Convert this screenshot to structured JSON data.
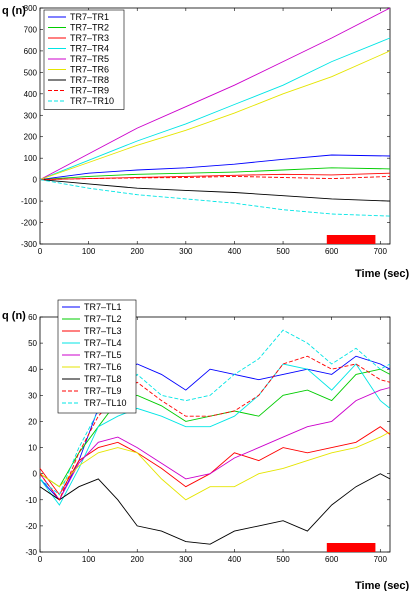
{
  "chart_data": [
    {
      "type": "line",
      "ylabel": "q (n)",
      "xlabel": "Time (sec)",
      "xlim": [
        0,
        720
      ],
      "ylim": [
        -300,
        800
      ],
      "xticks": [
        0,
        100,
        200,
        300,
        400,
        500,
        600,
        700
      ],
      "yticks": [
        -300,
        -200,
        -100,
        0,
        100,
        200,
        300,
        400,
        500,
        600,
        700,
        800
      ],
      "legend_position": "top-left",
      "highlight_band": {
        "x": [
          590,
          690
        ],
        "color": "#ff0000"
      },
      "series": [
        {
          "name": "TR7–TR1",
          "color": "#0000ff",
          "dash": false,
          "points": [
            [
              0,
              0
            ],
            [
              100,
              30
            ],
            [
              200,
              45
            ],
            [
              300,
              55
            ],
            [
              400,
              72
            ],
            [
              500,
              95
            ],
            [
              600,
              115
            ],
            [
              720,
              110
            ]
          ]
        },
        {
          "name": "TR7–TR2",
          "color": "#00cc00",
          "dash": false,
          "points": [
            [
              0,
              0
            ],
            [
              100,
              15
            ],
            [
              200,
              25
            ],
            [
              300,
              30
            ],
            [
              400,
              35
            ],
            [
              500,
              45
            ],
            [
              600,
              55
            ],
            [
              720,
              50
            ]
          ]
        },
        {
          "name": "TR7–TR3",
          "color": "#ff0000",
          "dash": false,
          "points": [
            [
              0,
              0
            ],
            [
              100,
              5
            ],
            [
              200,
              10
            ],
            [
              300,
              15
            ],
            [
              400,
              20
            ],
            [
              500,
              25
            ],
            [
              600,
              22
            ],
            [
              720,
              30
            ]
          ]
        },
        {
          "name": "TR7–TR4",
          "color": "#00e5e5",
          "dash": false,
          "points": [
            [
              0,
              0
            ],
            [
              100,
              90
            ],
            [
              200,
              180
            ],
            [
              300,
              260
            ],
            [
              400,
              350
            ],
            [
              500,
              440
            ],
            [
              600,
              550
            ],
            [
              720,
              660
            ]
          ]
        },
        {
          "name": "TR7–TR5",
          "color": "#cc00cc",
          "dash": false,
          "points": [
            [
              0,
              0
            ],
            [
              100,
              120
            ],
            [
              200,
              240
            ],
            [
              300,
              340
            ],
            [
              400,
              440
            ],
            [
              500,
              550
            ],
            [
              600,
              660
            ],
            [
              720,
              800
            ]
          ]
        },
        {
          "name": "TR7–TR6",
          "color": "#e5e500",
          "dash": false,
          "points": [
            [
              0,
              0
            ],
            [
              100,
              80
            ],
            [
              200,
              160
            ],
            [
              300,
              230
            ],
            [
              400,
              310
            ],
            [
              500,
              400
            ],
            [
              600,
              480
            ],
            [
              720,
              600
            ]
          ]
        },
        {
          "name": "TR7–TR8",
          "color": "#000000",
          "dash": false,
          "points": [
            [
              0,
              0
            ],
            [
              100,
              -20
            ],
            [
              200,
              -40
            ],
            [
              300,
              -50
            ],
            [
              400,
              -60
            ],
            [
              500,
              -75
            ],
            [
              600,
              -90
            ],
            [
              720,
              -100
            ]
          ]
        },
        {
          "name": "TR7–TR9",
          "color": "#ff0000",
          "dash": true,
          "points": [
            [
              0,
              0
            ],
            [
              100,
              5
            ],
            [
              200,
              8
            ],
            [
              300,
              10
            ],
            [
              400,
              15
            ],
            [
              500,
              10
            ],
            [
              600,
              5
            ],
            [
              720,
              15
            ]
          ]
        },
        {
          "name": "TR7–TR10",
          "color": "#00e5e5",
          "dash": true,
          "points": [
            [
              0,
              0
            ],
            [
              100,
              -40
            ],
            [
              200,
              -70
            ],
            [
              300,
              -90
            ],
            [
              400,
              -110
            ],
            [
              500,
              -140
            ],
            [
              600,
              -160
            ],
            [
              720,
              -170
            ]
          ]
        }
      ]
    },
    {
      "type": "line",
      "ylabel": "q (n)",
      "xlabel": "Time (sec)",
      "xlim": [
        0,
        720
      ],
      "ylim": [
        -30,
        60
      ],
      "xticks": [
        0,
        100,
        200,
        300,
        400,
        500,
        600,
        700
      ],
      "yticks": [
        -30,
        -20,
        -10,
        0,
        10,
        20,
        30,
        40,
        50,
        60
      ],
      "legend_position": "top-left",
      "highlight_band": {
        "x": [
          590,
          690
        ],
        "color": "#ff0000"
      },
      "series": [
        {
          "name": "TR7–TL1",
          "color": "#0000ff",
          "dash": false,
          "points": [
            [
              0,
              -2
            ],
            [
              40,
              -10
            ],
            [
              80,
              5
            ],
            [
              120,
              25
            ],
            [
              160,
              38
            ],
            [
              200,
              42
            ],
            [
              250,
              38
            ],
            [
              300,
              32
            ],
            [
              350,
              40
            ],
            [
              400,
              38
            ],
            [
              450,
              36
            ],
            [
              500,
              38
            ],
            [
              550,
              40
            ],
            [
              600,
              38
            ],
            [
              650,
              45
            ],
            [
              700,
              42
            ],
            [
              720,
              40
            ]
          ]
        },
        {
          "name": "TR7–TL2",
          "color": "#00cc00",
          "dash": false,
          "points": [
            [
              0,
              0
            ],
            [
              40,
              -5
            ],
            [
              80,
              8
            ],
            [
              120,
              18
            ],
            [
              160,
              28
            ],
            [
              200,
              30
            ],
            [
              250,
              26
            ],
            [
              300,
              20
            ],
            [
              350,
              22
            ],
            [
              400,
              24
            ],
            [
              450,
              22
            ],
            [
              500,
              30
            ],
            [
              550,
              32
            ],
            [
              600,
              28
            ],
            [
              650,
              38
            ],
            [
              700,
              40
            ],
            [
              720,
              38
            ]
          ]
        },
        {
          "name": "TR7–TL3",
          "color": "#ff0000",
          "dash": false,
          "points": [
            [
              0,
              2
            ],
            [
              40,
              -8
            ],
            [
              80,
              5
            ],
            [
              120,
              10
            ],
            [
              160,
              12
            ],
            [
              200,
              8
            ],
            [
              250,
              2
            ],
            [
              300,
              -5
            ],
            [
              350,
              0
            ],
            [
              400,
              8
            ],
            [
              450,
              5
            ],
            [
              500,
              10
            ],
            [
              550,
              8
            ],
            [
              600,
              10
            ],
            [
              650,
              12
            ],
            [
              700,
              18
            ],
            [
              720,
              15
            ]
          ]
        },
        {
          "name": "TR7–TL4",
          "color": "#00e5e5",
          "dash": false,
          "points": [
            [
              0,
              -2
            ],
            [
              40,
              -12
            ],
            [
              80,
              2
            ],
            [
              120,
              18
            ],
            [
              160,
              22
            ],
            [
              200,
              25
            ],
            [
              250,
              22
            ],
            [
              300,
              18
            ],
            [
              350,
              18
            ],
            [
              400,
              22
            ],
            [
              450,
              30
            ],
            [
              500,
              42
            ],
            [
              550,
              40
            ],
            [
              600,
              32
            ],
            [
              650,
              42
            ],
            [
              700,
              28
            ],
            [
              720,
              25
            ]
          ]
        },
        {
          "name": "TR7–TL5",
          "color": "#cc00cc",
          "dash": false,
          "points": [
            [
              0,
              0
            ],
            [
              40,
              -10
            ],
            [
              80,
              4
            ],
            [
              120,
              12
            ],
            [
              160,
              14
            ],
            [
              200,
              10
            ],
            [
              250,
              4
            ],
            [
              300,
              -2
            ],
            [
              350,
              0
            ],
            [
              400,
              6
            ],
            [
              450,
              10
            ],
            [
              500,
              14
            ],
            [
              550,
              18
            ],
            [
              600,
              20
            ],
            [
              650,
              28
            ],
            [
              700,
              32
            ],
            [
              720,
              33
            ]
          ]
        },
        {
          "name": "TR7–TL6",
          "color": "#e5e500",
          "dash": false,
          "points": [
            [
              0,
              0
            ],
            [
              40,
              -5
            ],
            [
              80,
              3
            ],
            [
              120,
              8
            ],
            [
              160,
              10
            ],
            [
              200,
              8
            ],
            [
              250,
              -2
            ],
            [
              300,
              -10
            ],
            [
              350,
              -5
            ],
            [
              400,
              -5
            ],
            [
              450,
              0
            ],
            [
              500,
              2
            ],
            [
              550,
              5
            ],
            [
              600,
              8
            ],
            [
              650,
              10
            ],
            [
              700,
              14
            ],
            [
              720,
              16
            ]
          ]
        },
        {
          "name": "TR7–TL8",
          "color": "#000000",
          "dash": false,
          "points": [
            [
              0,
              -5
            ],
            [
              40,
              -10
            ],
            [
              80,
              -5
            ],
            [
              120,
              -2
            ],
            [
              160,
              -10
            ],
            [
              200,
              -20
            ],
            [
              250,
              -22
            ],
            [
              300,
              -26
            ],
            [
              350,
              -27
            ],
            [
              400,
              -22
            ],
            [
              450,
              -20
            ],
            [
              500,
              -18
            ],
            [
              550,
              -22
            ],
            [
              600,
              -12
            ],
            [
              650,
              -5
            ],
            [
              700,
              0
            ],
            [
              720,
              -2
            ]
          ]
        },
        {
          "name": "TR7–TL9",
          "color": "#ff0000",
          "dash": true,
          "points": [
            [
              0,
              0
            ],
            [
              40,
              -10
            ],
            [
              80,
              8
            ],
            [
              120,
              22
            ],
            [
              160,
              30
            ],
            [
              200,
              35
            ],
            [
              250,
              28
            ],
            [
              300,
              22
            ],
            [
              350,
              22
            ],
            [
              400,
              24
            ],
            [
              450,
              30
            ],
            [
              500,
              42
            ],
            [
              550,
              45
            ],
            [
              600,
              40
            ],
            [
              650,
              42
            ],
            [
              700,
              36
            ],
            [
              720,
              35
            ]
          ]
        },
        {
          "name": "TR7–TL10",
          "color": "#00e5e5",
          "dash": true,
          "points": [
            [
              0,
              -2
            ],
            [
              40,
              -8
            ],
            [
              80,
              10
            ],
            [
              120,
              24
            ],
            [
              160,
              30
            ],
            [
              200,
              38
            ],
            [
              250,
              30
            ],
            [
              300,
              28
            ],
            [
              350,
              30
            ],
            [
              400,
              38
            ],
            [
              450,
              44
            ],
            [
              500,
              55
            ],
            [
              550,
              50
            ],
            [
              600,
              42
            ],
            [
              650,
              48
            ],
            [
              700,
              40
            ],
            [
              720,
              42
            ]
          ]
        }
      ]
    }
  ]
}
